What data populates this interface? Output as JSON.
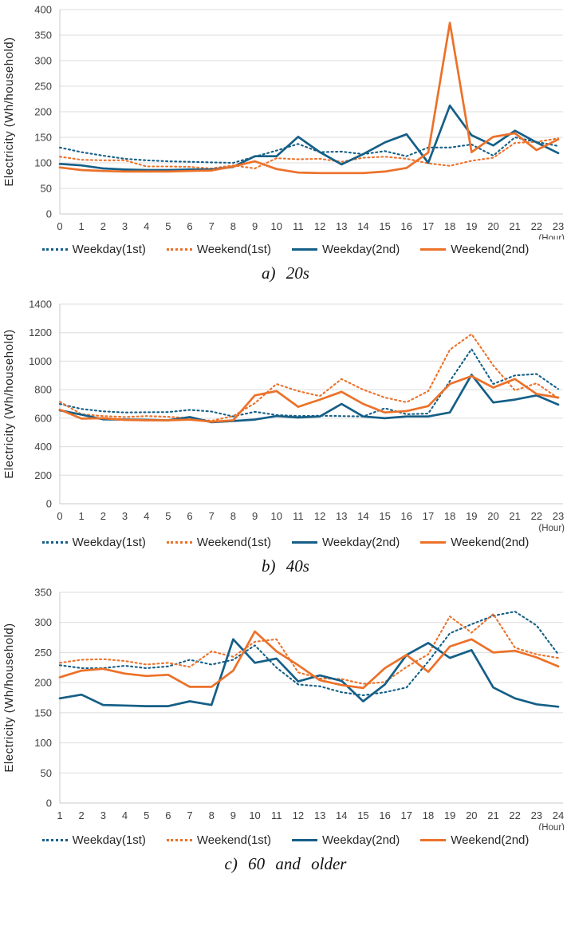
{
  "page": {
    "background": "#ffffff"
  },
  "colors": {
    "blue": "#155F87",
    "orange": "#EC7129",
    "grid": "#DCDCDC",
    "axis": "#C9C9C9",
    "tick_text": "#404040"
  },
  "chart_data": [
    {
      "id": "a",
      "type": "line",
      "caption": "a)  20s",
      "ylabel": "Electricity (Wh/household)",
      "xunit": "(Hour)",
      "ylim": [
        0,
        400
      ],
      "ytick_step": 50,
      "yticks": [
        0,
        50,
        100,
        150,
        200,
        250,
        300,
        350,
        400
      ],
      "x": [
        0,
        1,
        2,
        3,
        4,
        5,
        6,
        7,
        8,
        9,
        10,
        11,
        12,
        13,
        14,
        15,
        16,
        17,
        18,
        19,
        20,
        21,
        22,
        23
      ],
      "grid": true,
      "legend_position": "bottom",
      "series": [
        {
          "name": "Weekday(1st)",
          "style": "dotted",
          "color": "#155F87",
          "values": [
            130,
            121,
            114,
            108,
            105,
            103,
            102,
            101,
            100,
            112,
            124,
            137,
            121,
            122,
            117,
            123,
            113,
            130,
            130,
            136,
            114,
            150,
            141,
            133
          ]
        },
        {
          "name": "Weekend(1st)",
          "style": "dotted",
          "color": "#EC7129",
          "values": [
            112,
            106,
            105,
            105,
            93,
            93,
            92,
            89,
            95,
            89,
            109,
            107,
            108,
            102,
            110,
            112,
            108,
            99,
            94,
            104,
            110,
            139,
            141,
            148
          ]
        },
        {
          "name": "Weekday(2nd)",
          "style": "solid",
          "color": "#155F87",
          "values": [
            98,
            95,
            89,
            87,
            86,
            86,
            87,
            87,
            92,
            113,
            113,
            151,
            121,
            97,
            117,
            140,
            156,
            100,
            212,
            154,
            134,
            163,
            140,
            119
          ]
        },
        {
          "name": "Weekend(2nd)",
          "style": "solid",
          "color": "#EC7129",
          "values": [
            91,
            86,
            84,
            83,
            83,
            83,
            84,
            85,
            93,
            103,
            88,
            81,
            80,
            80,
            80,
            83,
            90,
            120,
            374,
            121,
            151,
            158,
            125,
            146
          ]
        }
      ]
    },
    {
      "id": "b",
      "type": "line",
      "caption": "b)  40s",
      "ylabel": "Electricity (Wh/household)",
      "xunit": "(Hour)",
      "ylim": [
        0,
        1400
      ],
      "ytick_step": 200,
      "yticks": [
        0,
        200,
        400,
        600,
        800,
        1000,
        1200,
        1400
      ],
      "x": [
        0,
        1,
        2,
        3,
        4,
        5,
        6,
        7,
        8,
        9,
        10,
        11,
        12,
        13,
        14,
        15,
        16,
        17,
        18,
        19,
        20,
        21,
        22,
        23
      ],
      "grid": true,
      "legend_position": "bottom",
      "series": [
        {
          "name": "Weekday(1st)",
          "style": "dotted",
          "color": "#155F87",
          "values": [
            700,
            665,
            648,
            640,
            642,
            643,
            658,
            647,
            612,
            645,
            622,
            615,
            617,
            615,
            612,
            670,
            628,
            632,
            860,
            1085,
            840,
            900,
            910,
            805
          ]
        },
        {
          "name": "Weekend(1st)",
          "style": "dotted",
          "color": "#EC7129",
          "values": [
            715,
            628,
            615,
            608,
            615,
            610,
            600,
            582,
            615,
            705,
            840,
            790,
            755,
            875,
            800,
            745,
            712,
            790,
            1080,
            1190,
            970,
            795,
            845,
            740
          ]
        },
        {
          "name": "Weekday(2nd)",
          "style": "solid",
          "color": "#155F87",
          "values": [
            655,
            625,
            592,
            590,
            588,
            585,
            608,
            572,
            580,
            590,
            615,
            605,
            612,
            700,
            612,
            600,
            612,
            612,
            640,
            905,
            710,
            730,
            760,
            695
          ]
        },
        {
          "name": "Weekend(2nd)",
          "style": "solid",
          "color": "#EC7129",
          "values": [
            660,
            597,
            600,
            588,
            585,
            585,
            590,
            575,
            585,
            760,
            790,
            680,
            730,
            785,
            700,
            640,
            650,
            685,
            840,
            895,
            815,
            875,
            770,
            745
          ]
        }
      ]
    },
    {
      "id": "c",
      "type": "line",
      "caption": "c)  60  and  older",
      "ylabel": "Electricity (Wh/household)",
      "xunit": "(Hour)",
      "ylim": [
        0,
        350
      ],
      "ytick_step": 50,
      "yticks": [
        0,
        50,
        100,
        150,
        200,
        250,
        300,
        350
      ],
      "x": [
        1,
        2,
        3,
        4,
        5,
        6,
        7,
        8,
        9,
        10,
        11,
        12,
        13,
        14,
        15,
        16,
        17,
        18,
        19,
        20,
        21,
        22,
        23,
        24
      ],
      "grid": true,
      "legend_position": "bottom",
      "series": [
        {
          "name": "Weekday(1st)",
          "style": "dotted",
          "color": "#155F87",
          "values": [
            229,
            224,
            224,
            228,
            224,
            227,
            238,
            230,
            238,
            262,
            225,
            197,
            194,
            184,
            179,
            184,
            192,
            235,
            282,
            297,
            311,
            318,
            295,
            247
          ]
        },
        {
          "name": "Weekend(1st)",
          "style": "dotted",
          "color": "#EC7129",
          "values": [
            233,
            238,
            239,
            236,
            230,
            233,
            226,
            252,
            243,
            268,
            272,
            217,
            207,
            206,
            198,
            201,
            226,
            247,
            310,
            283,
            314,
            258,
            247,
            241
          ]
        },
        {
          "name": "Weekday(2nd)",
          "style": "solid",
          "color": "#155F87",
          "values": [
            174,
            180,
            163,
            162,
            161,
            161,
            169,
            163,
            272,
            233,
            240,
            202,
            212,
            203,
            169,
            197,
            246,
            266,
            241,
            254,
            192,
            174,
            164,
            160
          ]
        },
        {
          "name": "Weekend(2nd)",
          "style": "solid",
          "color": "#EC7129",
          "values": [
            209,
            220,
            223,
            215,
            211,
            213,
            193,
            193,
            220,
            285,
            252,
            229,
            204,
            196,
            191,
            224,
            246,
            218,
            260,
            272,
            250,
            253,
            242,
            227
          ]
        }
      ]
    }
  ]
}
